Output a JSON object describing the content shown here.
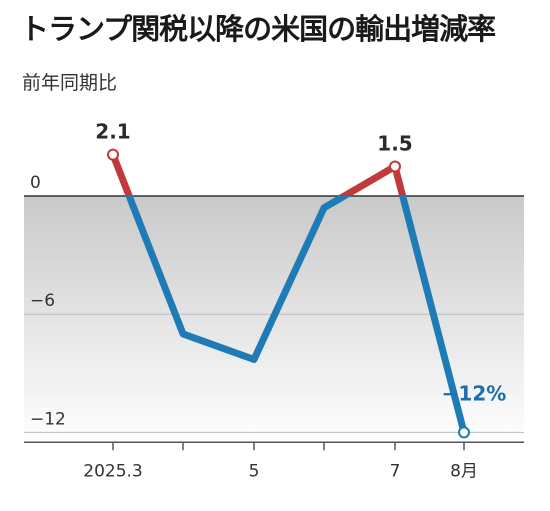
{
  "chart_data": {
    "type": "line",
    "title": "トランプ関税以降の米国の輸出増減率",
    "subtitle": "前年同期比",
    "x_tick_labels": [
      "2025.3",
      "",
      "5",
      "",
      "7",
      "8月"
    ],
    "series": [
      {
        "values": [
          2.1,
          -7.0,
          -8.3,
          -0.6,
          1.5,
          -12.0
        ]
      }
    ],
    "ylim": [
      -12.5,
      3.5
    ],
    "y_ticks": [
      0,
      -6,
      -12
    ],
    "y_tick_labels": [
      "0",
      "−6",
      "−12"
    ],
    "annotations": [
      {
        "index": 0,
        "text": "2.1",
        "color": "#2b2b2b"
      },
      {
        "index": 4,
        "text": "1.5",
        "color": "#2b2b2b"
      },
      {
        "index": 5,
        "text": "−12%",
        "color": "#1f6fa8"
      }
    ],
    "colors": {
      "positive": "#c0393b",
      "negative": "#1f7bb5",
      "shade_top": "#c9c9c9",
      "shade_bottom": "#ffffff"
    },
    "grid": true
  }
}
